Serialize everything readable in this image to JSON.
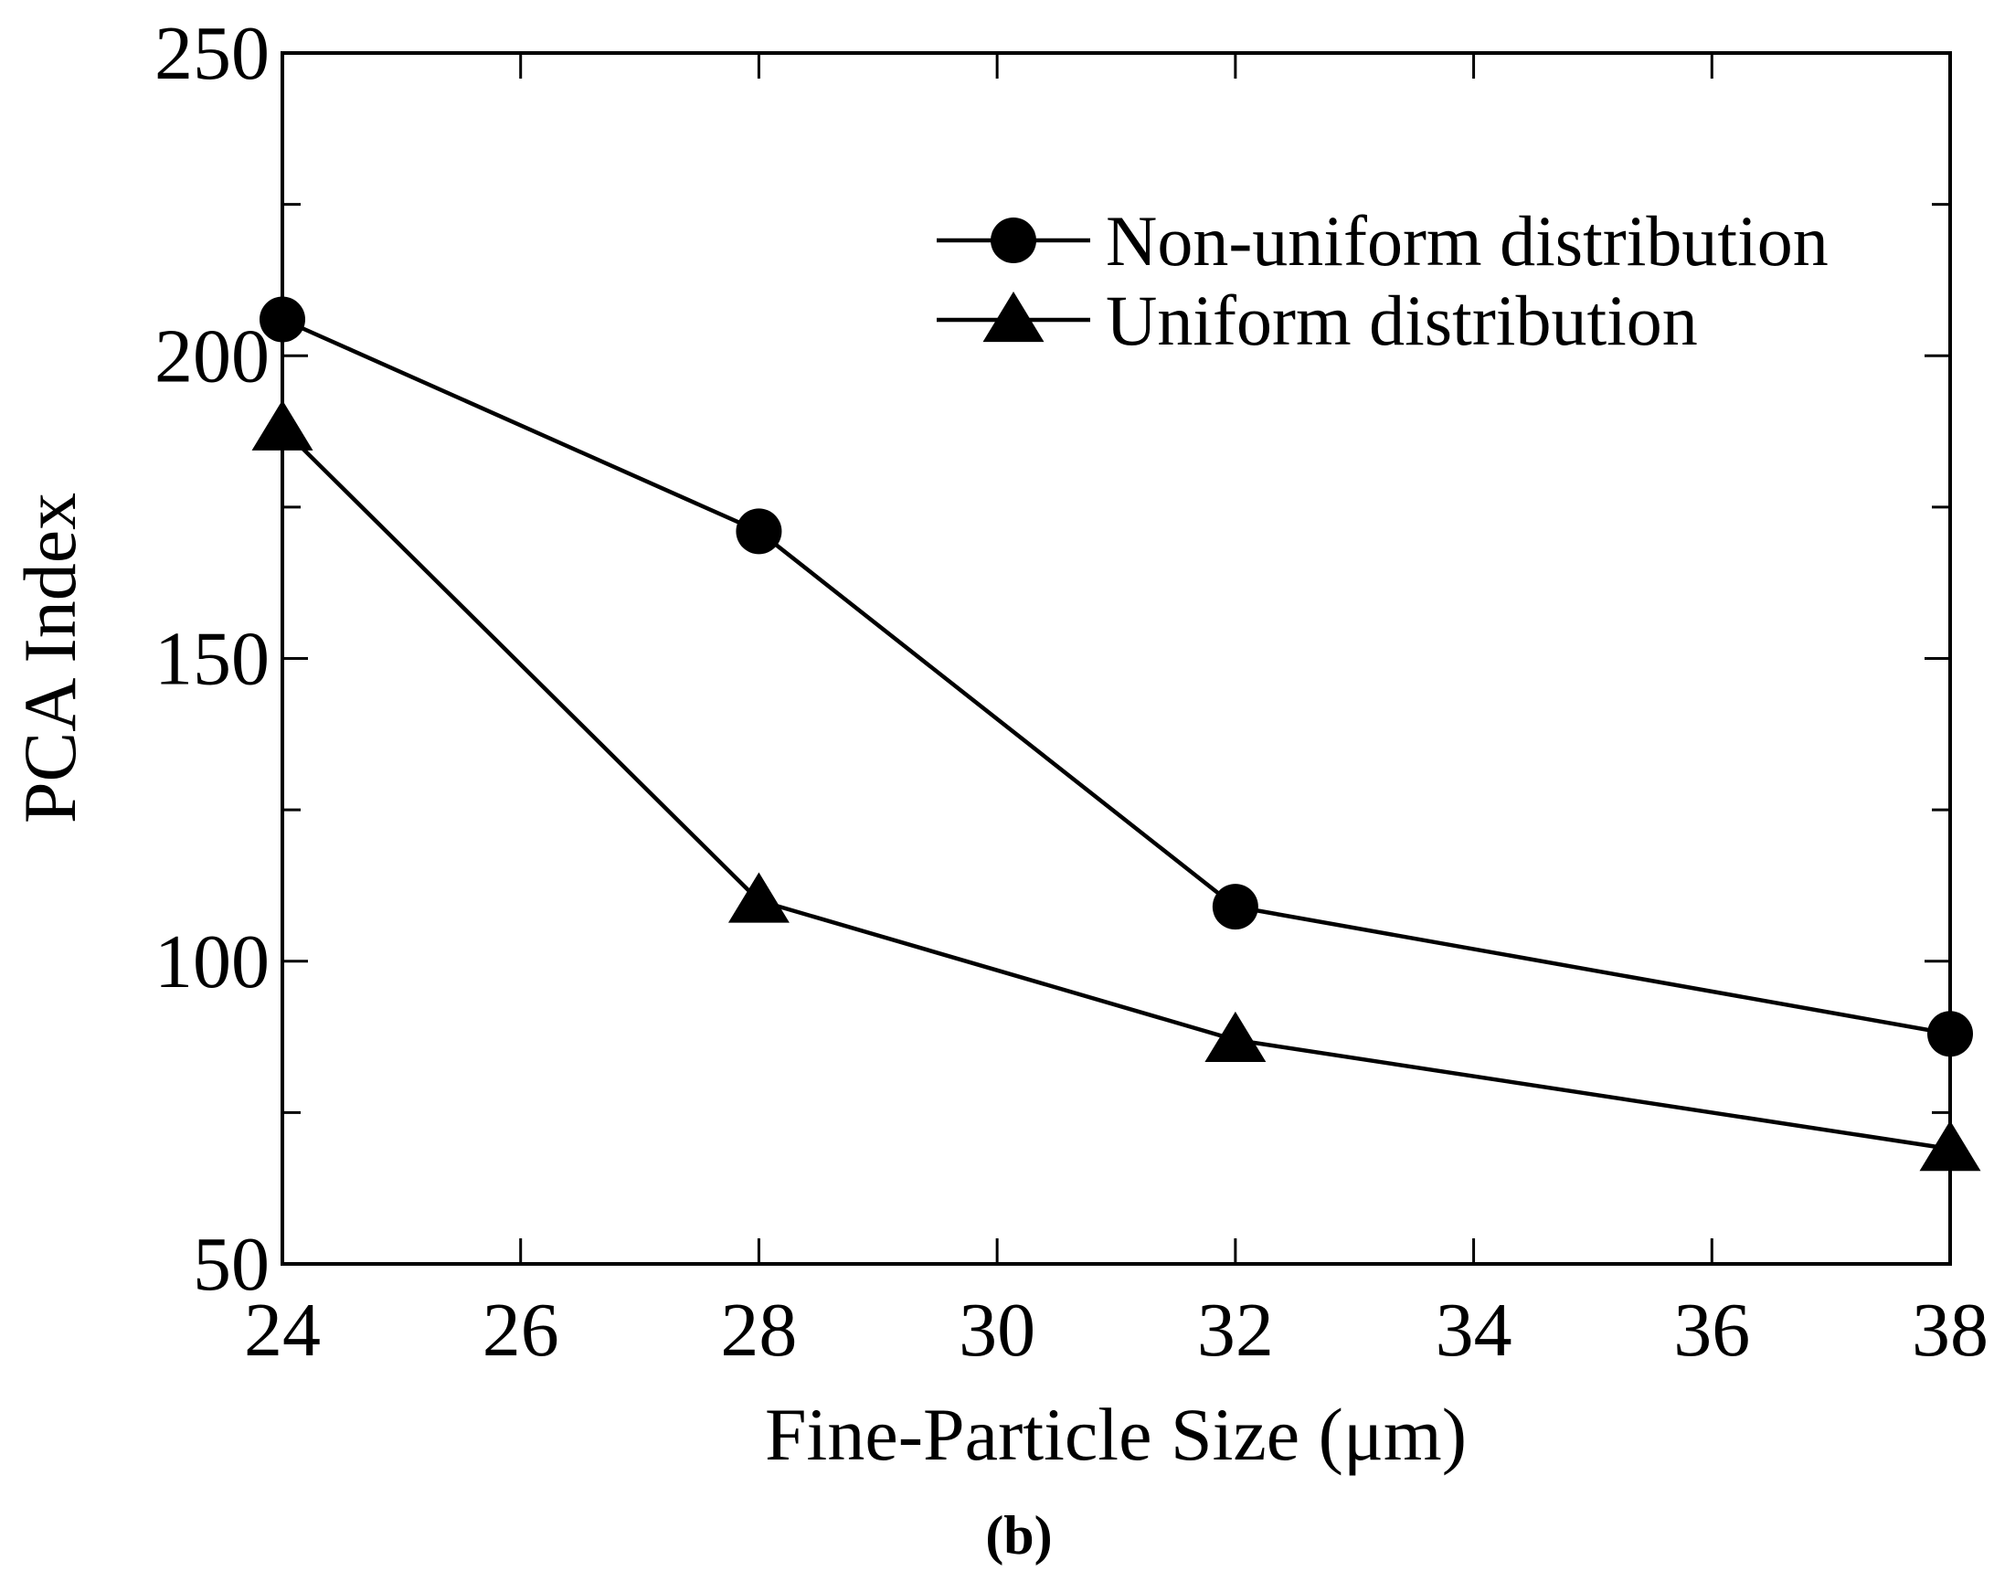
{
  "chart_data": {
    "type": "line",
    "xlabel": "Fine-Particle Size (μm)",
    "ylabel": "PCA Index",
    "xlim": [
      24,
      38
    ],
    "ylim": [
      50,
      250
    ],
    "x_ticks": [
      24,
      26,
      28,
      30,
      32,
      34,
      36,
      38
    ],
    "y_ticks": [
      50,
      100,
      150,
      200,
      250
    ],
    "grid": false,
    "legend": "upper-right",
    "series": [
      {
        "name": "Non-uniform distribution",
        "marker": "circle",
        "x": [
          24,
          28,
          32,
          38
        ],
        "y": [
          206,
          171,
          109,
          88
        ]
      },
      {
        "name": "Uniform distribution",
        "marker": "triangle",
        "x": [
          24,
          28,
          32,
          38
        ],
        "y": [
          188,
          110,
          87,
          69
        ]
      }
    ]
  },
  "panel_label": "(b)",
  "colors": {
    "line": "#000000",
    "background": "#ffffff"
  }
}
